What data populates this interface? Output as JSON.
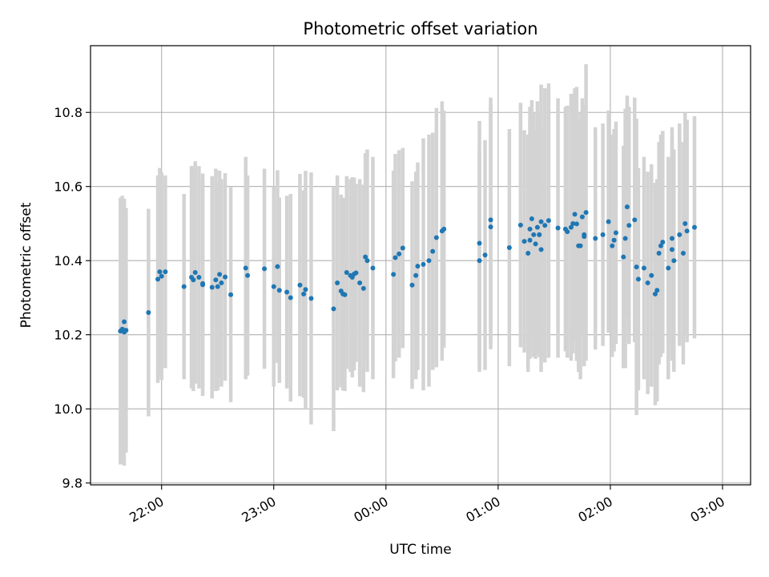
{
  "chart_data": {
    "type": "scatter",
    "title": "Photometric offset variation",
    "xlabel": "UTC time",
    "ylabel": "Photometric offset",
    "x_unit": "UTC time, shown as HH:MM",
    "xlim": [
      "21:22",
      "03:15"
    ],
    "ylim": [
      9.795,
      10.98
    ],
    "x_ticks": [
      "22:00",
      "23:00",
      "00:00",
      "01:00",
      "02:00",
      "03:00"
    ],
    "y_ticks": [
      "9.8",
      "10.0",
      "10.2",
      "10.4",
      "10.6",
      "10.8"
    ],
    "grid": true,
    "legend": "none",
    "colors": {
      "points": "#1f77b4",
      "error_bars": "#d3d3d3",
      "grid": "#b0b0b0",
      "axes": "#000000"
    },
    "series": [
      {
        "marker": "point",
        "error_bars": "vertical",
        "x": [
          "21:38",
          "21:39",
          "21:40",
          "21:40",
          "21:41",
          "21:53",
          "21:58",
          "21:59",
          "22:00",
          "22:02",
          "22:12",
          "22:16",
          "22:17",
          "22:18",
          "22:20",
          "22:22",
          "22:22",
          "22:27",
          "22:29",
          "22:30",
          "22:31",
          "22:32",
          "22:34",
          "22:37",
          "22:45",
          "22:46",
          "22:55",
          "23:00",
          "23:02",
          "23:03",
          "23:07",
          "23:09",
          "23:14",
          "23:16",
          "23:17",
          "23:20",
          "23:32",
          "23:34",
          "23:36",
          "23:37",
          "23:38",
          "23:39",
          "23:41",
          "23:42",
          "23:43",
          "23:44",
          "23:46",
          "23:48",
          "23:49",
          "23:50",
          "23:53",
          "00:04",
          "00:05",
          "00:07",
          "00:09",
          "00:14",
          "00:16",
          "00:17",
          "00:20",
          "00:23",
          "00:25",
          "00:27",
          "00:30",
          "00:31",
          "00:50",
          "00:50",
          "00:53",
          "00:56",
          "00:56",
          "01:06",
          "01:12",
          "01:14",
          "01:16",
          "01:17",
          "01:17",
          "01:18",
          "01:19",
          "01:20",
          "01:21",
          "01:22",
          "01:22",
          "01:23",
          "01:23",
          "01:25",
          "01:27",
          "01:32",
          "01:36",
          "01:37",
          "01:39",
          "01:40",
          "01:41",
          "01:42",
          "01:43",
          "01:44",
          "01:45",
          "01:46",
          "01:46",
          "01:47",
          "01:52",
          "01:56",
          "01:59",
          "02:01",
          "02:02",
          "02:03",
          "02:07",
          "02:08",
          "02:09",
          "02:10",
          "02:13",
          "02:14",
          "02:15",
          "02:18",
          "02:20",
          "02:22",
          "02:24",
          "02:25",
          "02:26",
          "02:27",
          "02:28",
          "02:31",
          "02:33",
          "02:33",
          "02:34",
          "02:37",
          "02:39",
          "02:40",
          "02:41",
          "02:45"
        ],
        "y": [
          10.21,
          10.215,
          10.235,
          10.207,
          10.212,
          10.26,
          10.35,
          10.37,
          10.358,
          10.37,
          10.33,
          10.355,
          10.348,
          10.368,
          10.355,
          10.335,
          10.338,
          10.328,
          10.348,
          10.33,
          10.363,
          10.34,
          10.356,
          10.308,
          10.38,
          10.36,
          10.378,
          10.33,
          10.384,
          10.32,
          10.315,
          10.3,
          10.334,
          10.31,
          10.322,
          10.298,
          10.27,
          10.34,
          10.318,
          10.31,
          10.308,
          10.368,
          10.36,
          10.355,
          10.364,
          10.367,
          10.34,
          10.325,
          10.41,
          10.4,
          10.38,
          10.363,
          10.408,
          10.418,
          10.434,
          10.334,
          10.36,
          10.385,
          10.39,
          10.4,
          10.425,
          10.462,
          10.48,
          10.485,
          10.447,
          10.4,
          10.415,
          10.491,
          10.51,
          10.435,
          10.496,
          10.452,
          10.42,
          10.455,
          10.485,
          10.513,
          10.47,
          10.445,
          10.49,
          10.47,
          10.47,
          10.43,
          10.505,
          10.495,
          10.508,
          10.488,
          10.485,
          10.478,
          10.49,
          10.5,
          10.525,
          10.499,
          10.44,
          10.44,
          10.518,
          10.47,
          10.465,
          10.53,
          10.46,
          10.47,
          10.505,
          10.44,
          10.455,
          10.475,
          10.41,
          10.46,
          10.545,
          10.495,
          10.51,
          10.383,
          10.35,
          10.38,
          10.34,
          10.36,
          10.31,
          10.32,
          10.42,
          10.44,
          10.45,
          10.38,
          10.46,
          10.43,
          10.4,
          10.47,
          10.42,
          10.5,
          10.48,
          10.49
        ],
        "yerr": [
          0.36,
          0.36,
          0.33,
          0.36,
          0.33,
          0.28,
          0.28,
          0.28,
          0.28,
          0.26,
          0.25,
          0.3,
          0.3,
          0.3,
          0.3,
          0.3,
          0.28,
          0.3,
          0.3,
          0.28,
          0.28,
          0.28,
          0.28,
          0.29,
          0.3,
          0.27,
          0.27,
          0.27,
          0.26,
          0.25,
          0.26,
          0.28,
          0.3,
          0.28,
          0.32,
          0.34,
          0.33,
          0.29,
          0.26,
          0.26,
          0.26,
          0.26,
          0.26,
          0.27,
          0.26,
          0.24,
          0.28,
          0.28,
          0.28,
          0.3,
          0.3,
          0.28,
          0.28,
          0.28,
          0.27,
          0.28,
          0.28,
          0.28,
          0.34,
          0.34,
          0.32,
          0.35,
          0.35,
          0.32,
          0.33,
          0.3,
          0.31,
          0.33,
          0.33,
          0.32,
          0.33,
          0.3,
          0.32,
          0.32,
          0.33,
          0.32,
          0.33,
          0.31,
          0.34,
          0.33,
          0.31,
          0.33,
          0.37,
          0.37,
          0.37,
          0.35,
          0.33,
          0.34,
          0.36,
          0.35,
          0.34,
          0.37,
          0.34,
          0.36,
          0.32,
          0.35,
          0.35,
          0.4,
          0.3,
          0.3,
          0.3,
          0.3,
          0.3,
          0.3,
          0.3,
          0.35,
          0.3,
          0.32,
          0.33,
          0.4,
          0.3,
          0.3,
          0.3,
          0.3,
          0.3,
          0.3,
          0.3,
          0.3,
          0.3,
          0.3,
          0.3,
          0.3,
          0.3,
          0.3,
          0.3,
          0.3,
          0.3,
          0.3
        ]
      }
    ]
  }
}
